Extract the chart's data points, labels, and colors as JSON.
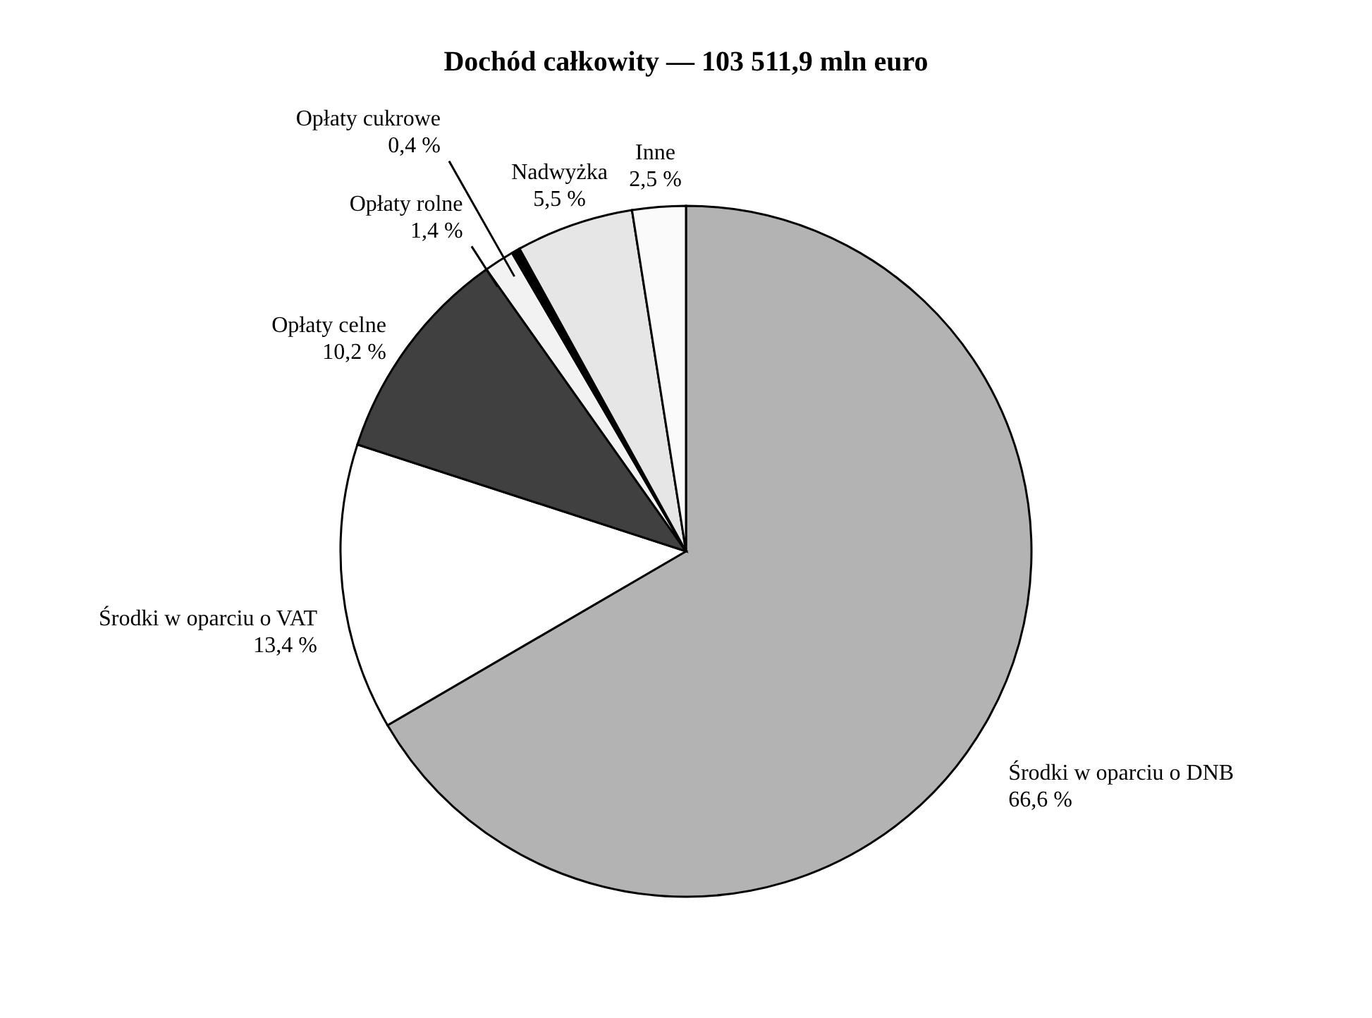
{
  "chart_data": {
    "type": "pie",
    "title": "Dochód całkowity — 103 511,9 mln euro",
    "categories": [
      "Środki w oparciu o DNB",
      "Środki w oparciu o VAT",
      "Opłaty celne",
      "Opłaty rolne",
      "Opłaty cukrowe",
      "Nadwyżka",
      "Inne"
    ],
    "values": [
      66.6,
      13.4,
      10.2,
      1.4,
      0.4,
      5.5,
      2.5
    ],
    "value_labels": [
      "66,6 %",
      "13,4 %",
      "10,2 %",
      "1,4 %",
      "0,4 %",
      "5,5 %",
      "2,5 %"
    ],
    "colors": [
      "#b3b3b3",
      "#ffffff",
      "#404040",
      "#f2f2f2",
      "#000000",
      "#e6e6e6",
      "#fafafa"
    ]
  }
}
